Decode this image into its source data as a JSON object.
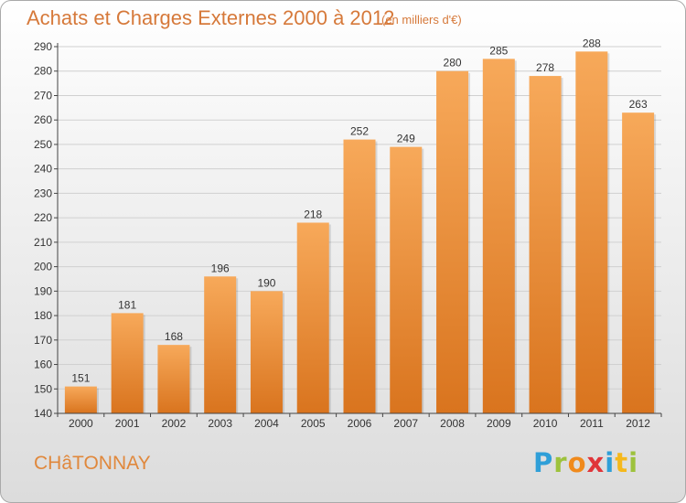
{
  "title": "Achats et Charges Externes 2000 à 2012",
  "subtitle": "(en milliers d'€)",
  "commune": "CHâTONNAY",
  "logo": {
    "text": "Proxiti",
    "letter_colors": [
      "#2f9fd8",
      "#9dc23c",
      "#f08a1c",
      "#e0353a",
      "#2f9fd8",
      "#f5b81c",
      "#9dc23c"
    ]
  },
  "colors": {
    "bar_top": "#f7a95a",
    "bar_bottom": "#d9741e",
    "accent_text": "#d6793a",
    "grid": "#d0d0d0",
    "axis": "#444444"
  },
  "chart_data": {
    "type": "bar",
    "categories": [
      "2000",
      "2001",
      "2002",
      "2003",
      "2004",
      "2005",
      "2006",
      "2007",
      "2008",
      "2009",
      "2010",
      "2011",
      "2012"
    ],
    "values": [
      151,
      181,
      168,
      196,
      190,
      218,
      252,
      249,
      280,
      285,
      278,
      288,
      263
    ],
    "ylim": [
      140,
      290
    ],
    "yticks": [
      140,
      150,
      160,
      170,
      180,
      190,
      200,
      210,
      220,
      230,
      240,
      250,
      260,
      270,
      280,
      290
    ],
    "grid": true,
    "data_labels": true
  }
}
